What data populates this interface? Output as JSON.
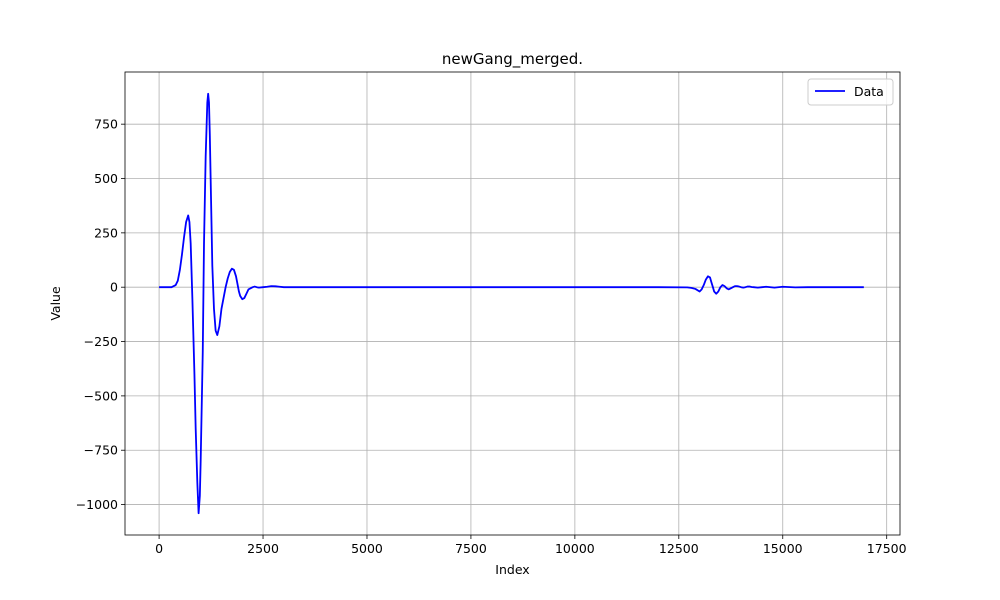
{
  "chart_data": {
    "type": "line",
    "title": "newGang_merged.",
    "xlabel": "Index",
    "ylabel": "Value",
    "xlim": [
      -820,
      17820
    ],
    "ylim": [
      -1140,
      990
    ],
    "grid": true,
    "legend_placement": "top-right",
    "x_ticks": [
      0,
      2500,
      5000,
      7500,
      10000,
      12500,
      15000,
      17500
    ],
    "x_tick_labels": [
      "0",
      "2500",
      "5000",
      "7500",
      "10000",
      "12500",
      "15000",
      "17500"
    ],
    "y_ticks": [
      -1000,
      -750,
      -500,
      -250,
      0,
      250,
      500,
      750
    ],
    "y_tick_labels": [
      "−1000",
      "−750",
      "−500",
      "−250",
      "0",
      "250",
      "500",
      "750"
    ],
    "series": [
      {
        "name": "Data",
        "color": "#0000ff",
        "x": [
          0,
          300,
          400,
          450,
          500,
          550,
          600,
          650,
          700,
          730,
          760,
          800,
          850,
          880,
          920,
          950,
          980,
          1000,
          1050,
          1080,
          1120,
          1160,
          1180,
          1200,
          1220,
          1250,
          1280,
          1320,
          1360,
          1400,
          1450,
          1500,
          1550,
          1600,
          1650,
          1700,
          1750,
          1800,
          1850,
          1880,
          1920,
          1950,
          2000,
          2050,
          2100,
          2150,
          2200,
          2250,
          2300,
          2350,
          2400,
          2500,
          2600,
          2700,
          2800,
          2900,
          3000,
          3200,
          3500,
          4000,
          6000,
          8000,
          10000,
          12000,
          12700,
          12800,
          12900,
          13000,
          13050,
          13100,
          13150,
          13200,
          13250,
          13280,
          13320,
          13350,
          13400,
          13450,
          13500,
          13550,
          13600,
          13650,
          13700,
          13750,
          13800,
          13850,
          13900,
          13950,
          14000,
          14050,
          14100,
          14150,
          14200,
          14250,
          14300,
          14400,
          14500,
          14600,
          14800,
          15000,
          15300,
          15600,
          16000,
          16500,
          16950
        ],
        "y": [
          0,
          0,
          10,
          30,
          80,
          150,
          230,
          300,
          330,
          300,
          200,
          -50,
          -400,
          -650,
          -900,
          -1040,
          -960,
          -800,
          -300,
          200,
          600,
          850,
          890,
          850,
          700,
          400,
          100,
          -100,
          -200,
          -220,
          -180,
          -100,
          -50,
          0,
          40,
          70,
          85,
          80,
          50,
          20,
          -20,
          -40,
          -55,
          -50,
          -30,
          -10,
          -5,
          0,
          3,
          0,
          -2,
          0,
          2,
          5,
          4,
          2,
          0,
          0,
          0,
          0,
          0,
          0,
          0,
          0,
          -1,
          -3,
          -8,
          -20,
          -10,
          10,
          35,
          50,
          45,
          25,
          0,
          -20,
          -30,
          -20,
          0,
          10,
          5,
          -5,
          -10,
          -5,
          0,
          5,
          5,
          3,
          0,
          -2,
          0,
          3,
          3,
          1,
          0,
          -2,
          0,
          2,
          -2,
          2,
          -1,
          0,
          0,
          0,
          0
        ]
      }
    ]
  }
}
